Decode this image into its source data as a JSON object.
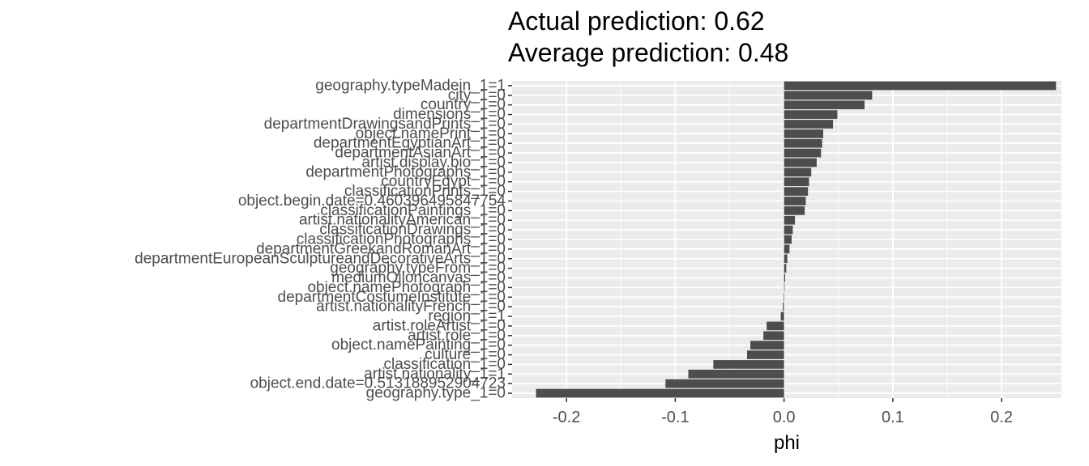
{
  "chart_data": {
    "type": "bar",
    "orientation": "horizontal",
    "title_lines": [
      "Actual prediction: 0.62",
      "Average prediction: 0.48"
    ],
    "xlabel": "phi",
    "ylabel": "",
    "xlim": [
      -0.25,
      0.255
    ],
    "x_ticks": [
      -0.2,
      -0.1,
      0.0,
      0.1,
      0.2
    ],
    "x_tick_labels": [
      "-0.2",
      "-0.1",
      "0.0",
      "0.1",
      "0.2"
    ],
    "grid": true,
    "bar_color": "#4d4d4d",
    "panel_color": "#ebebeb",
    "categories": [
      "geography.typeMadein_1=1",
      "city_1=0",
      "country_1=0",
      "dimensions_1=0",
      "departmentDrawingsandPrints_1=0",
      "object.namePrint_1=0",
      "departmentEgyptianArt_1=0",
      "departmentAsianArt_1=0",
      "artist.display.bio_1=0",
      "departmentPhotographs_1=0",
      "countryEgypt_1=0",
      "classificationPrints_1=0",
      "object.begin.date=0.460396495847754",
      "classificationPaintings_1=0",
      "artist.nationalityAmerican_1=0",
      "classificationDrawings_1=0",
      "classificationPhotographs_1=0",
      "departmentGreekandRomanArt_1=0",
      "departmentEuropeanSculptureandDecorativeArts_1=0",
      "geography.typeFrom_1=0",
      "mediumOiloncanvas_1=0",
      "object.namePhotograph_1=0",
      "departmentCostumeInstitute_1=0",
      "artist.nationalityFrench_1=0",
      "region_1=1",
      "artist.roleArtist_1=0",
      "artist.role_1=0",
      "object.namePainting_1=0",
      "culture_1=0",
      "classification_1=0",
      "artist.nationality_1=1",
      "object.end.date=0.513188952904723",
      "geography.type_1=0"
    ],
    "values": [
      0.25,
      0.081,
      0.074,
      0.049,
      0.045,
      0.036,
      0.035,
      0.034,
      0.03,
      0.025,
      0.023,
      0.022,
      0.02,
      0.019,
      0.01,
      0.008,
      0.007,
      0.005,
      0.003,
      0.002,
      0.001,
      0.0005,
      -0.0005,
      -0.001,
      -0.003,
      -0.016,
      -0.019,
      -0.031,
      -0.034,
      -0.065,
      -0.088,
      -0.109,
      -0.228
    ]
  }
}
